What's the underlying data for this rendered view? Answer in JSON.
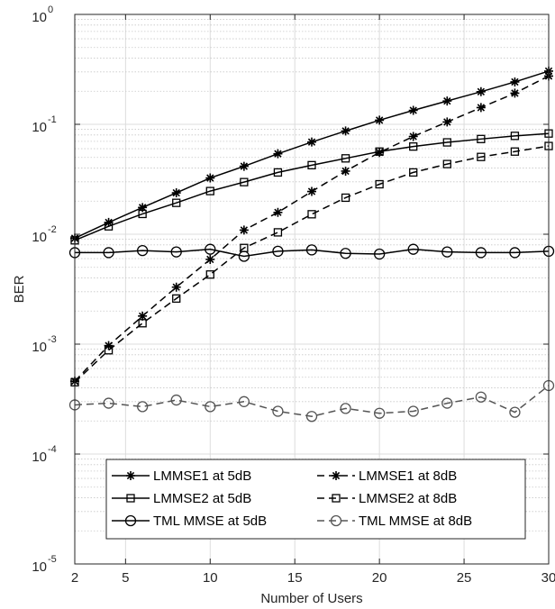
{
  "chart_data": {
    "type": "line",
    "title": "",
    "xlabel": "Number of Users",
    "ylabel": "BER",
    "x_scale": "linear",
    "y_scale": "log",
    "xlim": [
      2,
      30
    ],
    "ylim": [
      1e-05,
      1
    ],
    "grid": true,
    "minor_grid": true,
    "legend_position": "bottom",
    "legend_columns": 2,
    "x_ticks": [
      2,
      5,
      10,
      15,
      20,
      25,
      30
    ],
    "x_tick_labels": [
      "2",
      "5",
      "10",
      "15",
      "20",
      "25",
      "30"
    ],
    "y_ticks": [
      1e-05,
      0.0001,
      0.001,
      0.01,
      0.1,
      1
    ],
    "y_tick_labels": [
      {
        "base": "10",
        "exp": "-5"
      },
      {
        "base": "10",
        "exp": "-4"
      },
      {
        "base": "10",
        "exp": "-3"
      },
      {
        "base": "10",
        "exp": "-2"
      },
      {
        "base": "10",
        "exp": "-1"
      },
      {
        "base": "10",
        "exp": "0"
      }
    ],
    "x": [
      2,
      4,
      6,
      8,
      10,
      12,
      14,
      16,
      18,
      20,
      22,
      24,
      26,
      28,
      30
    ],
    "series": [
      {
        "name": "LMMSE1 at 5dB",
        "style": "solid",
        "marker": "asterisk",
        "color": "#000000",
        "values": [
          0.0092,
          0.0128,
          0.0175,
          0.0238,
          0.0325,
          0.0415,
          0.054,
          0.069,
          0.087,
          0.109,
          0.134,
          0.163,
          0.198,
          0.243,
          0.305
        ]
      },
      {
        "name": "LMMSE2 at 5dB",
        "style": "solid",
        "marker": "square",
        "color": "#000000",
        "values": [
          0.0088,
          0.0118,
          0.0153,
          0.0193,
          0.0247,
          0.0298,
          0.0365,
          0.0425,
          0.049,
          0.0565,
          0.0628,
          0.0685,
          0.0735,
          0.0785,
          0.0825
        ]
      },
      {
        "name": "TML MMSE at 5dB",
        "style": "solid",
        "marker": "circle",
        "color": "#000000",
        "values": [
          0.0068,
          0.0068,
          0.0071,
          0.0069,
          0.0073,
          0.0063,
          0.007,
          0.0072,
          0.0067,
          0.0066,
          0.0073,
          0.0069,
          0.0068,
          0.0068,
          0.007
        ]
      },
      {
        "name": "LMMSE1 at 8dB",
        "style": "dashed",
        "marker": "asterisk",
        "color": "#000000",
        "values": [
          0.00046,
          0.00097,
          0.0018,
          0.0033,
          0.0059,
          0.0109,
          0.0158,
          0.0245,
          0.0375,
          0.0555,
          0.0775,
          0.105,
          0.142,
          0.192,
          0.275
        ]
      },
      {
        "name": "LMMSE2 at 8dB",
        "style": "dashed",
        "marker": "square",
        "color": "#000000",
        "values": [
          0.00045,
          0.00088,
          0.00155,
          0.0026,
          0.0043,
          0.0075,
          0.0104,
          0.0152,
          0.0215,
          0.0285,
          0.0365,
          0.0435,
          0.0505,
          0.0565,
          0.0635
        ]
      },
      {
        "name": "TML MMSE at 8dB",
        "style": "dashed",
        "marker": "circle",
        "color": "#555555",
        "values": [
          0.00028,
          0.00029,
          0.00027,
          0.00031,
          0.00027,
          0.0003,
          0.000245,
          0.00022,
          0.00026,
          0.000235,
          0.000245,
          0.00029,
          0.00033,
          0.00024,
          0.00042
        ]
      }
    ]
  }
}
